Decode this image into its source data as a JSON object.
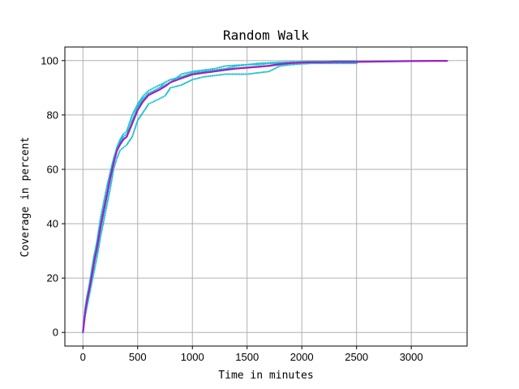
{
  "chart_data": {
    "type": "line",
    "title": "Random Walk",
    "xlabel": "Time in minutes",
    "ylabel": "Coverage in percent",
    "xlim": [
      -165,
      3510
    ],
    "ylim": [
      -5,
      105
    ],
    "xticks": [
      0,
      500,
      1000,
      1500,
      2000,
      2500,
      3000
    ],
    "yticks": [
      0,
      20,
      40,
      60,
      80,
      100
    ],
    "grid": true,
    "colors": {
      "runs": "#17becf",
      "mean": "#a020c0",
      "grid": "#b0b0b0"
    },
    "series": [
      {
        "style": "dots",
        "x": [
          0,
          20,
          40,
          60,
          80,
          100,
          130,
          160,
          190,
          220,
          250,
          280,
          310,
          340,
          370,
          400,
          450,
          500,
          550,
          600,
          650,
          700,
          750,
          800,
          900,
          1000,
          1100,
          1200,
          1300,
          1400,
          1500,
          1600,
          1700,
          1800,
          1900,
          2000,
          2100,
          2200,
          2300,
          2400,
          2500
        ],
        "values": [
          0,
          8,
          13,
          16,
          20,
          25,
          31,
          38,
          44,
          50,
          57,
          62,
          68,
          71,
          73,
          74,
          80,
          84,
          87,
          89,
          90,
          91,
          92,
          93,
          94,
          95.5,
          96,
          96.5,
          97,
          98,
          98.5,
          98.5,
          99,
          99,
          99.3,
          99.5,
          99.5,
          99.5,
          99.5,
          99.6,
          99.6
        ]
      },
      {
        "style": "dots",
        "x": [
          0,
          20,
          40,
          60,
          80,
          100,
          130,
          160,
          190,
          220,
          250,
          280,
          310,
          340,
          370,
          400,
          450,
          500,
          550,
          600,
          650,
          700,
          750,
          800,
          900,
          1000,
          1100,
          1200,
          1300,
          1400,
          1500,
          1600,
          1700,
          1800,
          1900,
          2000,
          2100,
          2200,
          2300,
          2400,
          2500
        ],
        "values": [
          0,
          6,
          10,
          14,
          18,
          22,
          28,
          35,
          41,
          47,
          53,
          60,
          64,
          67,
          68,
          69,
          72,
          78,
          81,
          84,
          85,
          86,
          87,
          90,
          91,
          93,
          94,
          94.5,
          95,
          95,
          95,
          95.5,
          96,
          98,
          98.5,
          98.8,
          99,
          99,
          99,
          99,
          99
        ]
      },
      {
        "style": "dots",
        "x": [
          0,
          20,
          40,
          60,
          80,
          100,
          130,
          160,
          190,
          220,
          250,
          280,
          310,
          340,
          370,
          400,
          450,
          500,
          550,
          600,
          650,
          700,
          750,
          800,
          900,
          1000,
          1100,
          1200,
          1300,
          1400,
          1500,
          1600,
          1700,
          1800,
          1900,
          2000,
          2100,
          2200,
          2300,
          2400,
          2500
        ],
        "values": [
          0,
          7,
          12,
          17,
          22,
          27,
          34,
          42,
          48,
          54,
          59,
          64,
          68,
          70,
          72,
          73,
          77,
          82,
          86,
          88,
          89,
          90,
          91,
          92,
          95,
          96,
          96.5,
          97,
          98,
          98.3,
          98.5,
          99,
          99.2,
          99.4,
          99.5,
          99.6,
          99.7,
          99.7,
          99.8,
          99.8,
          99.8
        ]
      },
      {
        "style": "dots",
        "x": [
          0,
          20,
          40,
          60,
          80,
          100,
          130,
          160,
          190,
          220,
          250,
          280,
          310,
          340,
          370,
          400,
          450,
          500,
          550,
          600,
          650,
          700,
          750,
          800,
          900,
          1000,
          1100,
          1200,
          1300,
          1400,
          1500,
          1600,
          1700,
          1800,
          1900,
          2000,
          2100,
          2200,
          2300,
          2400,
          2500,
          2600,
          2800,
          3000,
          3200,
          3330
        ],
        "values": [
          0,
          9,
          14,
          18,
          23,
          28,
          33,
          40,
          46,
          52,
          58,
          63,
          67,
          69,
          71,
          72,
          78,
          83,
          86,
          88,
          89,
          90,
          92,
          93,
          94,
          95,
          95.5,
          96,
          96.5,
          97,
          97.5,
          97.8,
          98,
          98.5,
          99,
          99.2,
          99.4,
          99.5,
          99.6,
          99.6,
          99.7,
          99.7,
          99.8,
          99.8,
          99.9,
          99.9
        ]
      },
      {
        "style": "line",
        "x": [
          0,
          20,
          40,
          60,
          80,
          100,
          130,
          160,
          190,
          220,
          250,
          280,
          310,
          340,
          370,
          400,
          450,
          500,
          550,
          600,
          650,
          700,
          750,
          800,
          900,
          1000,
          1100,
          1200,
          1300,
          1400,
          1500,
          1600,
          1700,
          1800,
          1900,
          2000,
          2100,
          2200,
          2300,
          2400,
          2500,
          2600,
          2800,
          3000,
          3200,
          3330
        ],
        "values": [
          0,
          7.5,
          12.3,
          16.3,
          20.8,
          25.5,
          31.5,
          38.8,
          44.8,
          50.8,
          56.8,
          62.3,
          66.8,
          69.3,
          71,
          72,
          76.8,
          81.8,
          85,
          87.3,
          88.3,
          89.3,
          90.5,
          92,
          93.5,
          94.9,
          95.5,
          96,
          96.6,
          97.1,
          97.4,
          97.7,
          98.1,
          98.7,
          99.1,
          99.3,
          99.4,
          99.4,
          99.5,
          99.5,
          99.5,
          99.6,
          99.7,
          99.8,
          99.9,
          99.9
        ]
      }
    ]
  }
}
